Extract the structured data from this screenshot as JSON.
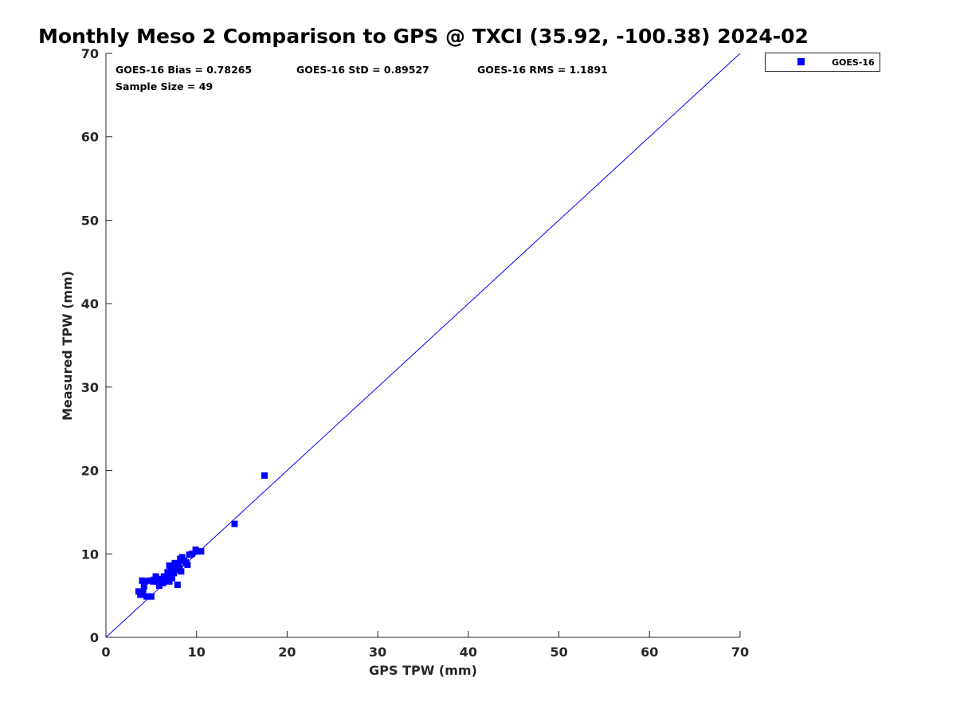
{
  "chart_data": {
    "type": "scatter",
    "title": "Monthly Meso 2 Comparison to GPS @ TXCI (35.92, -100.38) 2024-02",
    "xlabel": "GPS TPW (mm)",
    "ylabel": "Measured TPW (mm)",
    "xlim": [
      0,
      70
    ],
    "ylim": [
      0,
      70
    ],
    "xticks": [
      "0",
      "10",
      "20",
      "30",
      "40",
      "50",
      "60",
      "70"
    ],
    "yticks": [
      "0",
      "10",
      "20",
      "30",
      "40",
      "50",
      "60",
      "70"
    ],
    "grid": false,
    "legend_position": "outside-top-right",
    "stats": {
      "bias": "GOES-16 Bias = 0.78265",
      "std": "GOES-16 StD = 0.89527",
      "rms": "GOES-16 RMS = 1.1891",
      "sample": "Sample Size = 49"
    },
    "reference_line": {
      "x": [
        0,
        70
      ],
      "y": [
        0,
        70
      ],
      "color": "#0000ff"
    },
    "series": [
      {
        "name": "GOES-16",
        "color": "#0000ff",
        "marker": "square",
        "x": [
          3.6,
          3.8,
          4.0,
          4.1,
          4.2,
          4.3,
          4.5,
          4.8,
          5.0,
          5.2,
          5.3,
          5.5,
          5.6,
          5.9,
          6.0,
          6.1,
          6.3,
          6.4,
          6.5,
          6.6,
          6.8,
          6.9,
          7.0,
          7.0,
          7.1,
          7.2,
          7.3,
          7.4,
          7.5,
          7.6,
          7.7,
          7.8,
          7.9,
          8.0,
          8.1,
          8.2,
          8.3,
          8.4,
          8.6,
          8.8,
          9.0,
          9.2,
          9.5,
          9.9,
          10.1,
          10.5,
          14.2,
          17.5,
          3.9
        ],
        "y": [
          5.5,
          5.1,
          6.8,
          5.4,
          6.1,
          6.7,
          4.9,
          6.8,
          4.9,
          6.7,
          6.9,
          7.3,
          6.7,
          6.2,
          7.0,
          6.7,
          6.5,
          7.3,
          7.0,
          6.9,
          7.8,
          7.3,
          8.6,
          6.7,
          7.5,
          8.2,
          7.1,
          8.5,
          7.7,
          8.9,
          8.1,
          8.6,
          6.3,
          8.8,
          8.3,
          9.4,
          7.9,
          9.6,
          9.2,
          9.0,
          8.7,
          9.9,
          10.0,
          10.5,
          10.3,
          10.3,
          13.6,
          19.4,
          5.2
        ]
      }
    ]
  }
}
